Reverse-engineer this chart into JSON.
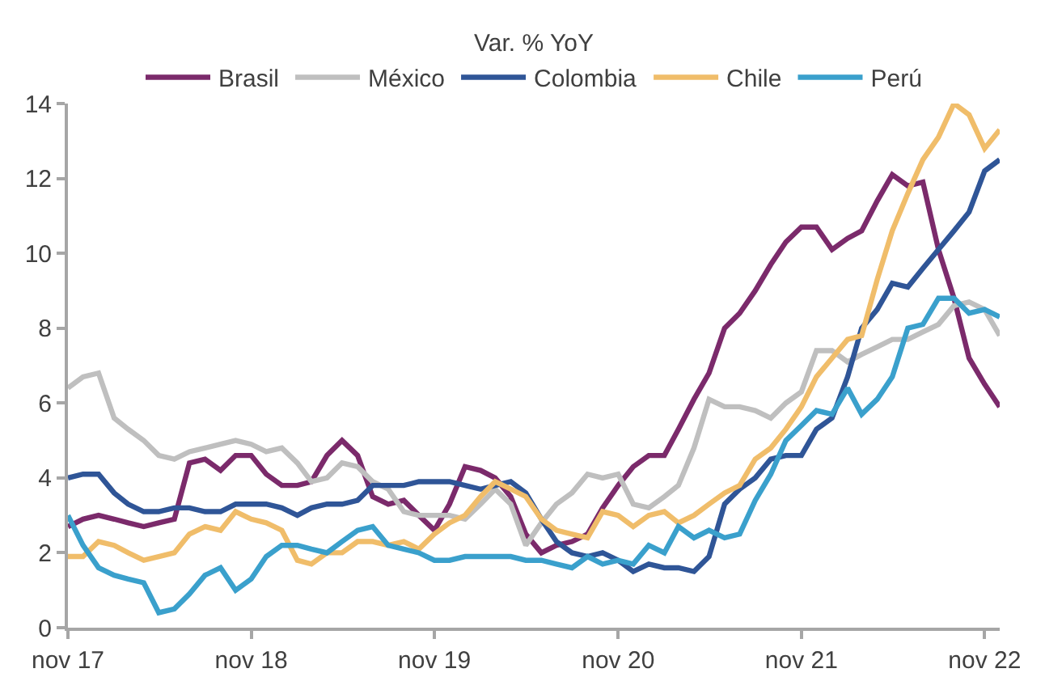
{
  "chart_data": {
    "type": "line",
    "legend_title": "Var. % YoY",
    "legend": "top",
    "grid": false,
    "line_style": "solid",
    "marker": "none",
    "x": [
      "2017-11",
      "2017-12",
      "2018-01",
      "2018-02",
      "2018-03",
      "2018-04",
      "2018-05",
      "2018-06",
      "2018-07",
      "2018-08",
      "2018-09",
      "2018-10",
      "2018-11",
      "2018-12",
      "2019-01",
      "2019-02",
      "2019-03",
      "2019-04",
      "2019-05",
      "2019-06",
      "2019-07",
      "2019-08",
      "2019-09",
      "2019-10",
      "2019-11",
      "2019-12",
      "2020-01",
      "2020-02",
      "2020-03",
      "2020-04",
      "2020-05",
      "2020-06",
      "2020-07",
      "2020-08",
      "2020-09",
      "2020-10",
      "2020-11",
      "2020-12",
      "2021-01",
      "2021-02",
      "2021-03",
      "2021-04",
      "2021-05",
      "2021-06",
      "2021-07",
      "2021-08",
      "2021-09",
      "2021-10",
      "2021-11",
      "2021-12",
      "2022-01",
      "2022-02",
      "2022-03",
      "2022-04",
      "2022-05",
      "2022-06",
      "2022-07",
      "2022-08",
      "2022-09",
      "2022-10",
      "2022-11",
      "2022-12"
    ],
    "xlim": [
      "2017-11",
      "2022-12"
    ],
    "xticks": [
      {
        "value": "2017-11",
        "label": "nov 17"
      },
      {
        "value": "2018-11",
        "label": "nov 18"
      },
      {
        "value": "2019-11",
        "label": "nov 19"
      },
      {
        "value": "2020-11",
        "label": "nov 20"
      },
      {
        "value": "2021-11",
        "label": "nov 21"
      },
      {
        "value": "2022-11",
        "label": "nov 22"
      }
    ],
    "ylim": [
      0,
      14
    ],
    "yticks": [
      0,
      2,
      4,
      6,
      8,
      10,
      12,
      14
    ],
    "series": [
      {
        "name": "Brasil",
        "color": "#7b2a6b",
        "values": [
          2.7,
          2.9,
          3.0,
          2.9,
          2.8,
          2.7,
          2.8,
          2.9,
          4.4,
          4.5,
          4.2,
          4.6,
          4.6,
          4.1,
          3.8,
          3.8,
          3.9,
          4.6,
          5.0,
          4.6,
          3.5,
          3.3,
          3.4,
          3.0,
          2.6,
          3.3,
          4.3,
          4.2,
          4.0,
          3.5,
          2.5,
          2.0,
          2.2,
          2.3,
          2.5,
          3.2,
          3.8,
          4.3,
          4.6,
          4.6,
          5.3,
          6.1,
          6.8,
          8.0,
          8.4,
          9.0,
          9.7,
          10.3,
          10.7,
          10.7,
          10.1,
          10.4,
          10.6,
          11.4,
          12.1,
          11.8,
          11.9,
          10.1,
          8.8,
          7.2,
          6.5,
          5.9
        ]
      },
      {
        "name": "México",
        "color": "#bfbfbf",
        "values": [
          6.4,
          6.7,
          6.8,
          5.6,
          5.3,
          5.0,
          4.6,
          4.5,
          4.7,
          4.8,
          4.9,
          5.0,
          4.9,
          4.7,
          4.8,
          4.4,
          3.9,
          4.0,
          4.4,
          4.3,
          3.9,
          3.7,
          3.1,
          3.0,
          3.0,
          3.0,
          2.9,
          3.3,
          3.7,
          3.3,
          2.2,
          2.8,
          3.3,
          3.6,
          4.1,
          4.0,
          4.1,
          3.3,
          3.2,
          3.5,
          3.8,
          4.8,
          6.1,
          5.9,
          5.9,
          5.8,
          5.6,
          6.0,
          6.3,
          7.4,
          7.4,
          7.1,
          7.3,
          7.5,
          7.7,
          7.7,
          7.9,
          8.1,
          8.6,
          8.7,
          8.5,
          7.8
        ]
      },
      {
        "name": "Colombia",
        "color": "#2f5597",
        "values": [
          4.0,
          4.1,
          4.1,
          3.6,
          3.3,
          3.1,
          3.1,
          3.2,
          3.2,
          3.1,
          3.1,
          3.3,
          3.3,
          3.3,
          3.2,
          3.0,
          3.2,
          3.3,
          3.3,
          3.4,
          3.8,
          3.8,
          3.8,
          3.9,
          3.9,
          3.9,
          3.8,
          3.7,
          3.8,
          3.9,
          3.6,
          2.9,
          2.3,
          2.0,
          1.9,
          2.0,
          1.8,
          1.5,
          1.7,
          1.6,
          1.6,
          1.5,
          1.9,
          3.3,
          3.7,
          4.0,
          4.5,
          4.6,
          4.6,
          5.3,
          5.6,
          6.7,
          8.0,
          8.5,
          9.2,
          9.1,
          9.6,
          10.1,
          10.6,
          11.1,
          12.2,
          12.5
        ]
      },
      {
        "name": "Chile",
        "color": "#f0bd6a",
        "values": [
          1.9,
          1.9,
          2.3,
          2.2,
          2.0,
          1.8,
          1.9,
          2.0,
          2.5,
          2.7,
          2.6,
          3.1,
          2.9,
          2.8,
          2.6,
          1.8,
          1.7,
          2.0,
          2.0,
          2.3,
          2.3,
          2.2,
          2.3,
          2.1,
          2.5,
          2.8,
          3.0,
          3.5,
          3.9,
          3.7,
          3.5,
          2.9,
          2.6,
          2.5,
          2.4,
          3.1,
          3.0,
          2.7,
          3.0,
          3.1,
          2.8,
          3.0,
          3.3,
          3.6,
          3.8,
          4.5,
          4.8,
          5.3,
          5.9,
          6.7,
          7.2,
          7.7,
          7.8,
          9.3,
          10.6,
          11.6,
          12.5,
          13.1,
          14.0,
          13.7,
          12.8,
          13.3
        ]
      },
      {
        "name": "Perú",
        "color": "#3aa0cc",
        "values": [
          3.0,
          2.2,
          1.6,
          1.4,
          1.3,
          1.2,
          0.4,
          0.5,
          0.9,
          1.4,
          1.6,
          1.0,
          1.3,
          1.9,
          2.2,
          2.2,
          2.1,
          2.0,
          2.3,
          2.6,
          2.7,
          2.2,
          2.1,
          2.0,
          1.8,
          1.8,
          1.9,
          1.9,
          1.9,
          1.9,
          1.8,
          1.8,
          1.7,
          1.6,
          1.9,
          1.7,
          1.8,
          1.7,
          2.2,
          2.0,
          2.7,
          2.4,
          2.6,
          2.4,
          2.5,
          3.4,
          4.1,
          5.0,
          5.4,
          5.8,
          5.7,
          6.4,
          5.7,
          6.1,
          6.7,
          8.0,
          8.1,
          8.8,
          8.8,
          8.4,
          8.5,
          8.3
        ]
      }
    ]
  }
}
